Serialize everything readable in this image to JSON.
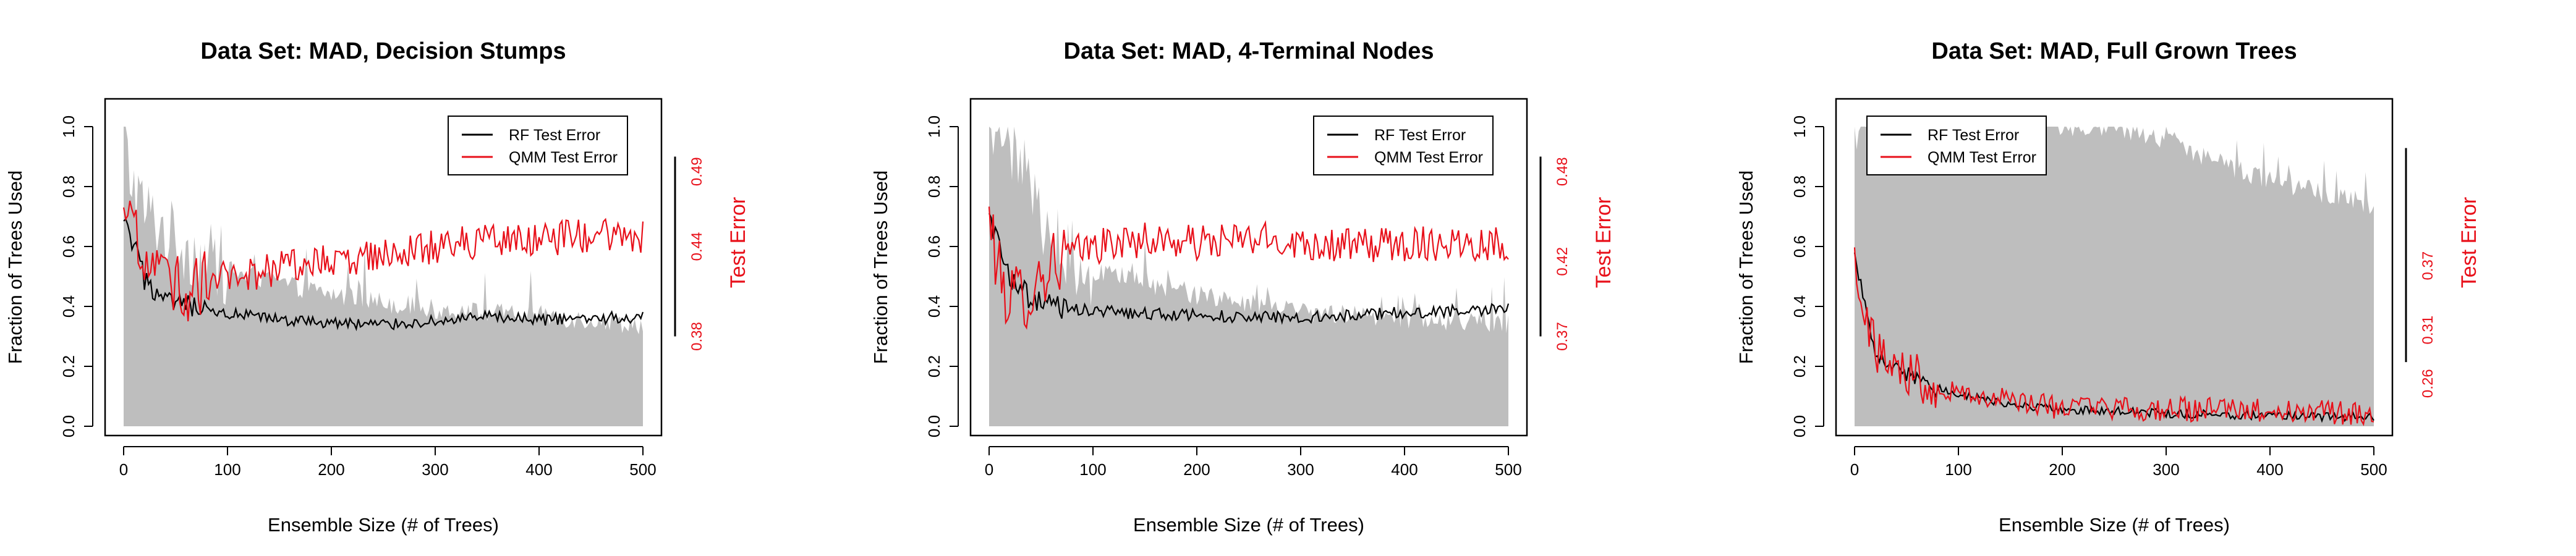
{
  "colors": {
    "rf": "#000000",
    "qmm": "#e8101a",
    "fraction": "#bebebe"
  },
  "chart_data": [
    {
      "type": "line",
      "title": "Data Set: MAD, Decision Stumps",
      "xlabel": "Ensemble Size (# of Trees)",
      "ylabel": "Fraction of Trees Used",
      "y2label": "Test Error",
      "xlim": [
        0,
        500
      ],
      "ylim": [
        0,
        1.0
      ],
      "xticks": [
        "0",
        "100",
        "200",
        "300",
        "400",
        "500"
      ],
      "yticks": [
        "0.0",
        "0.2",
        "0.4",
        "0.6",
        "0.8",
        "1.0"
      ],
      "y2lim": [
        0.32,
        0.52
      ],
      "y2ticks": [
        "0.38",
        "0.44",
        "0.49"
      ],
      "y2tick_values": [
        0.38,
        0.44,
        0.49
      ],
      "legend": [
        "RF Test Error",
        "QMM Test Error"
      ],
      "legend_position": "top-right",
      "fraction_used": {
        "x": [
          0,
          5,
          20,
          50,
          100,
          200,
          300,
          400,
          500
        ],
        "y": [
          1.0,
          0.85,
          0.72,
          0.62,
          0.52,
          0.44,
          0.39,
          0.37,
          0.34
        ]
      },
      "series": [
        {
          "name": "RF Test Error",
          "x": [
            0,
            10,
            20,
            40,
            60,
            80,
            100,
            150,
            200,
            250,
            300,
            350,
            400,
            450,
            500
          ],
          "y": [
            0.455,
            0.44,
            0.418,
            0.402,
            0.4,
            0.396,
            0.395,
            0.391,
            0.389,
            0.388,
            0.39,
            0.393,
            0.391,
            0.392,
            0.393
          ]
        },
        {
          "name": "QMM Test Error",
          "x": [
            0,
            10,
            20,
            40,
            60,
            80,
            100,
            150,
            200,
            250,
            300,
            350,
            400,
            450,
            500
          ],
          "y": [
            0.46,
            0.445,
            0.43,
            0.42,
            0.41,
            0.415,
            0.42,
            0.425,
            0.43,
            0.435,
            0.44,
            0.445,
            0.445,
            0.448,
            0.445
          ]
        }
      ]
    },
    {
      "type": "line",
      "title": "Data Set: MAD, 4-Terminal Nodes",
      "xlabel": "Ensemble Size (# of Trees)",
      "ylabel": "Fraction of Trees Used",
      "y2label": "Test Error",
      "xlim": [
        0,
        500
      ],
      "ylim": [
        0,
        1.0
      ],
      "xticks": [
        "0",
        "100",
        "200",
        "300",
        "400",
        "500"
      ],
      "yticks": [
        "0.0",
        "0.2",
        "0.4",
        "0.6",
        "0.8",
        "1.0"
      ],
      "y2lim": [
        0.31,
        0.51
      ],
      "y2ticks": [
        "0.37",
        "0.42",
        "0.48"
      ],
      "y2tick_values": [
        0.37,
        0.42,
        0.48
      ],
      "legend": [
        "RF Test Error",
        "QMM Test Error"
      ],
      "legend_position": "top-right",
      "fraction_used": {
        "x": [
          0,
          10,
          30,
          60,
          100,
          200,
          300,
          400,
          500
        ],
        "y": [
          1.0,
          1.0,
          0.88,
          0.62,
          0.52,
          0.44,
          0.38,
          0.36,
          0.34
        ]
      },
      "series": [
        {
          "name": "RF Test Error",
          "x": [
            0,
            10,
            20,
            40,
            60,
            80,
            100,
            150,
            200,
            250,
            300,
            350,
            400,
            450,
            500
          ],
          "y": [
            0.45,
            0.43,
            0.41,
            0.395,
            0.39,
            0.388,
            0.387,
            0.385,
            0.384,
            0.383,
            0.383,
            0.384,
            0.386,
            0.387,
            0.388
          ]
        },
        {
          "name": "QMM Test Error",
          "x": [
            0,
            10,
            20,
            40,
            60,
            80,
            100,
            150,
            200,
            250,
            300,
            350,
            400,
            450,
            500
          ],
          "y": [
            0.45,
            0.41,
            0.395,
            0.4,
            0.42,
            0.425,
            0.43,
            0.435,
            0.432,
            0.435,
            0.433,
            0.43,
            0.432,
            0.433,
            0.432
          ]
        }
      ]
    },
    {
      "type": "line",
      "title": "Data Set: MAD, Full Grown Trees",
      "xlabel": "Ensemble Size (# of Trees)",
      "ylabel": "Fraction of Trees Used",
      "y2label": "Test Error",
      "xlim": [
        0,
        500
      ],
      "ylim": [
        0,
        1.0
      ],
      "xticks": [
        "0",
        "100",
        "200",
        "300",
        "400",
        "500"
      ],
      "yticks": [
        "0.0",
        "0.2",
        "0.4",
        "0.6",
        "0.8",
        "1.0"
      ],
      "y2lim": [
        0.22,
        0.5
      ],
      "y2ticks": [
        "0.26",
        "0.31",
        "0.37"
      ],
      "y2tick_values": [
        0.26,
        0.31,
        0.37
      ],
      "legend": [
        "RF Test Error",
        "QMM Test Error"
      ],
      "legend_position": "top-left",
      "fraction_used": {
        "x": [
          0,
          50,
          150,
          250,
          300,
          350,
          400,
          450,
          500
        ],
        "y": [
          1.0,
          1.0,
          1.0,
          1.0,
          0.96,
          0.88,
          0.82,
          0.78,
          0.74
        ]
      },
      "series": [
        {
          "name": "RF Test Error",
          "x": [
            0,
            10,
            20,
            40,
            60,
            80,
            100,
            150,
            200,
            250,
            300,
            350,
            400,
            450,
            500
          ],
          "y": [
            0.38,
            0.33,
            0.29,
            0.275,
            0.265,
            0.255,
            0.25,
            0.24,
            0.236,
            0.234,
            0.232,
            0.231,
            0.23,
            0.229,
            0.229
          ]
        },
        {
          "name": "QMM Test Error",
          "x": [
            0,
            10,
            20,
            40,
            60,
            80,
            100,
            150,
            200,
            250,
            300,
            350,
            400,
            450,
            500
          ],
          "y": [
            0.38,
            0.33,
            0.29,
            0.275,
            0.268,
            0.258,
            0.252,
            0.243,
            0.238,
            0.236,
            0.235,
            0.235,
            0.234,
            0.234,
            0.233
          ]
        }
      ]
    }
  ]
}
